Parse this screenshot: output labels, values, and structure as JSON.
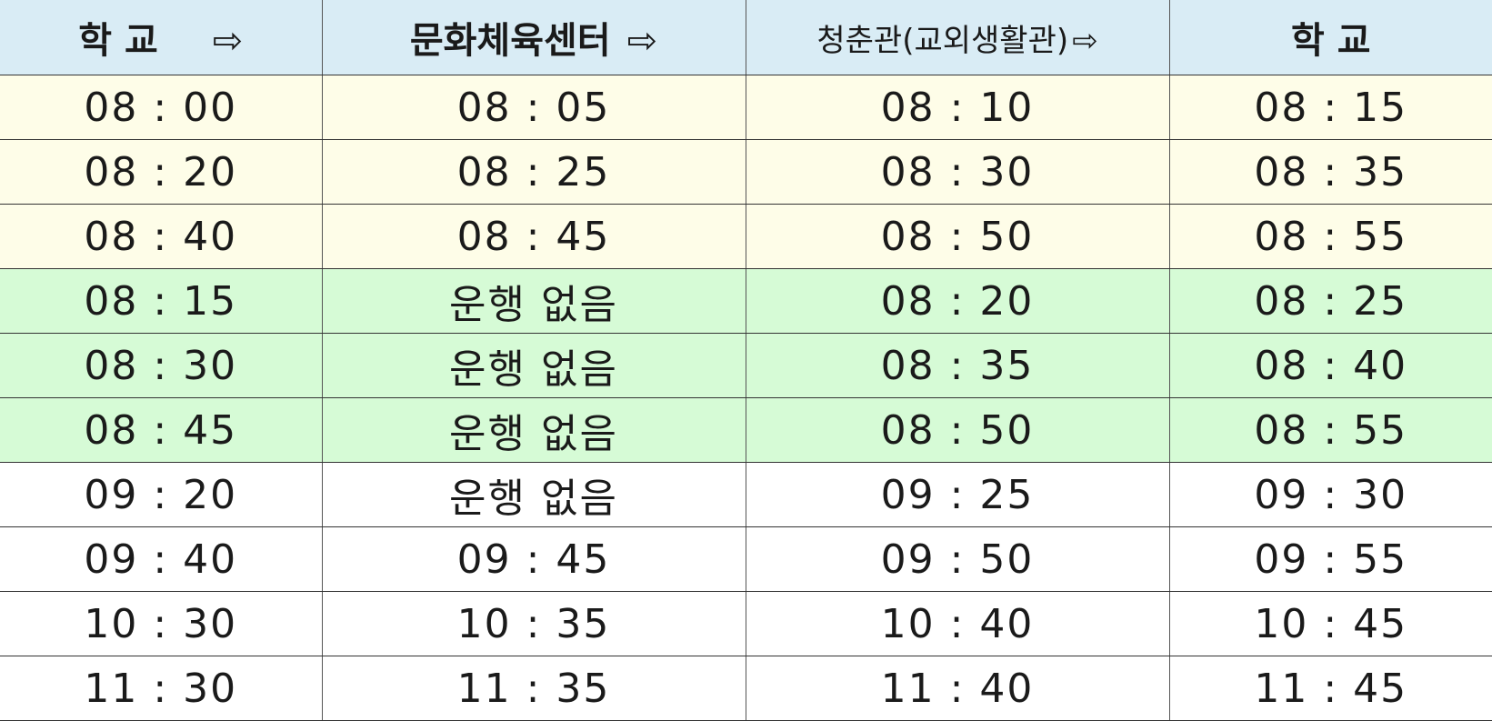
{
  "headers": [
    {
      "label": "학  교",
      "arrow": "⇨"
    },
    {
      "label": "문화체육센터",
      "arrow": "⇨"
    },
    {
      "label": "청춘관(교외생활관)",
      "arrow": "⇨"
    },
    {
      "label": "학  교",
      "arrow": ""
    }
  ],
  "rows": [
    {
      "band": "yellow",
      "cells": [
        "08 : 00",
        "08 : 05",
        "08 : 10",
        "08 : 15"
      ]
    },
    {
      "band": "yellow",
      "cells": [
        "08 : 20",
        "08 : 25",
        "08 : 30",
        "08 : 35"
      ]
    },
    {
      "band": "yellow",
      "cells": [
        "08 : 40",
        "08 : 45",
        "08 : 50",
        "08 : 55"
      ]
    },
    {
      "band": "green",
      "cells": [
        "08 : 15",
        "운행 없음",
        "08 : 20",
        "08 : 25"
      ]
    },
    {
      "band": "green",
      "cells": [
        "08 : 30",
        "운행 없음",
        "08 : 35",
        "08 : 40"
      ]
    },
    {
      "band": "green",
      "cells": [
        "08 : 45",
        "운행 없음",
        "08 : 50",
        "08 : 55"
      ]
    },
    {
      "band": "white",
      "cells": [
        "09 : 20",
        "운행 없음",
        "09 : 25",
        "09 : 30"
      ]
    },
    {
      "band": "white",
      "cells": [
        "09 : 40",
        "09 : 45",
        "09 : 50",
        "09 : 55"
      ]
    },
    {
      "band": "white",
      "cells": [
        "10 : 30",
        "10 : 35",
        "10 : 40",
        "10 : 45"
      ]
    },
    {
      "band": "white",
      "cells": [
        "11 : 30",
        "11 : 35",
        "11 : 40",
        "11 : 45"
      ]
    }
  ],
  "colors": {
    "header_bg": "#d9ecf5",
    "yellow_band": "#fefde8",
    "green_band": "#d6fbd6",
    "white_band": "#ffffff"
  }
}
